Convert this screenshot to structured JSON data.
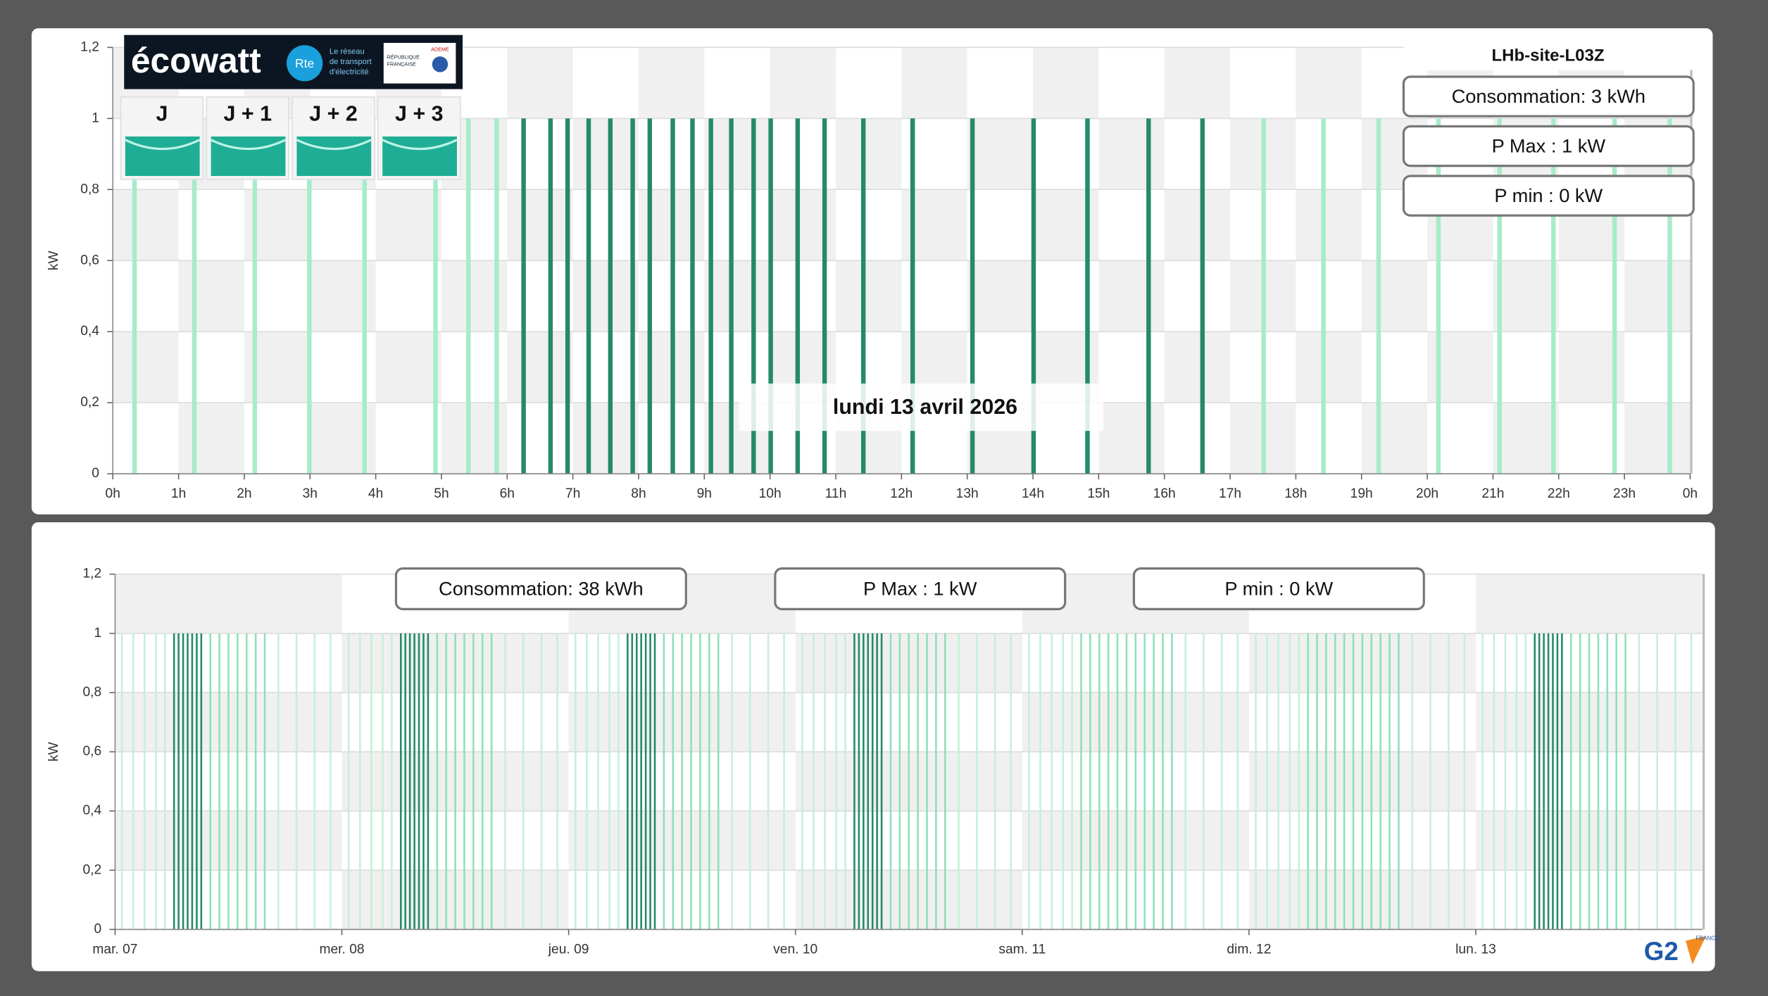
{
  "ecowatt": {
    "brand": "écowatt",
    "rte": "Rte",
    "rte_tagline": [
      "Le réseau",
      "de transport",
      "d'électricité"
    ],
    "republique": [
      "RÉPUBLIQUE",
      "FRANÇAISE"
    ],
    "ademe": "ADEME",
    "days": [
      "J",
      "J + 1",
      "J + 2",
      "J + 3"
    ]
  },
  "footer_logo": {
    "brand": "G2",
    "country": "FRANCE"
  },
  "chart_data": [
    {
      "type": "bar",
      "title": "LHb-site-L03Z",
      "annotation": "lundi 13 avril 2026",
      "info_boxes": [
        "Consommation: 3 kWh",
        "P Max :  1 kW",
        "P min : 0 kW"
      ],
      "y_label": "kW",
      "grid": true,
      "xlim": [
        0,
        24
      ],
      "xticks": [
        {
          "value": 0,
          "label": "0h"
        },
        {
          "value": 1,
          "label": "1h"
        },
        {
          "value": 2,
          "label": "2h"
        },
        {
          "value": 3,
          "label": "3h"
        },
        {
          "value": 4,
          "label": "4h"
        },
        {
          "value": 5,
          "label": "5h"
        },
        {
          "value": 6,
          "label": "6h"
        },
        {
          "value": 7,
          "label": "7h"
        },
        {
          "value": 8,
          "label": "8h"
        },
        {
          "value": 9,
          "label": "9h"
        },
        {
          "value": 10,
          "label": "10h"
        },
        {
          "value": 11,
          "label": "11h"
        },
        {
          "value": 12,
          "label": "12h"
        },
        {
          "value": 13,
          "label": "13h"
        },
        {
          "value": 14,
          "label": "14h"
        },
        {
          "value": 15,
          "label": "15h"
        },
        {
          "value": 16,
          "label": "16h"
        },
        {
          "value": 17,
          "label": "17h"
        },
        {
          "value": 18,
          "label": "18h"
        },
        {
          "value": 19,
          "label": "19h"
        },
        {
          "value": 20,
          "label": "20h"
        },
        {
          "value": 21,
          "label": "21h"
        },
        {
          "value": 22,
          "label": "22h"
        },
        {
          "value": 23,
          "label": "23h"
        },
        {
          "value": 24,
          "label": "0h"
        }
      ],
      "ylim": [
        0,
        1.2
      ],
      "yticks": [
        0,
        {
          "value": 0.2,
          "label": "0,2"
        },
        {
          "value": 0.4,
          "label": "0,4"
        },
        {
          "value": 0.6,
          "label": "0,6"
        },
        {
          "value": 0.8,
          "label": "0,8"
        },
        1,
        {
          "value": 1.2,
          "label": "1,2"
        }
      ],
      "series": [
        {
          "color": "#a8ebc9",
          "x": [
            0.33,
            1.24,
            2.16,
            2.99,
            3.83,
            4.91,
            5.41,
            5.84,
            17.51,
            18.42,
            19.26,
            20.17,
            21.1,
            21.92,
            22.85,
            23.69
          ],
          "values": [
            1,
            1,
            1,
            1,
            1,
            1,
            1,
            1,
            1,
            1,
            1,
            1,
            1,
            1,
            1,
            1
          ]
        },
        {
          "color": "#238a6a",
          "x": [
            6.25,
            6.66,
            6.92,
            7.24,
            7.57,
            7.91,
            8.17,
            8.52,
            8.82,
            9.1,
            9.41,
            9.75,
            10.01,
            10.42,
            10.83,
            11.42,
            12.17,
            13.08,
            14.01,
            14.83,
            15.76,
            16.58
          ],
          "values": [
            1,
            1,
            1,
            1,
            1,
            1,
            1,
            1,
            1,
            1,
            1,
            1,
            1,
            1,
            1,
            1,
            1,
            1,
            1,
            1,
            1,
            1
          ]
        }
      ]
    },
    {
      "type": "bar",
      "info_boxes": [
        "Consommation: 38 kWh",
        "P Max :  1 kW",
        "P min : 0 kW"
      ],
      "y_label": "kW",
      "grid": true,
      "xlim": [
        0,
        7
      ],
      "xticks": [
        {
          "value": 0,
          "label": "mar. 07"
        },
        {
          "value": 1,
          "label": "mer. 08"
        },
        {
          "value": 2,
          "label": "jeu. 09"
        },
        {
          "value": 3,
          "label": "ven. 10"
        },
        {
          "value": 4,
          "label": "sam. 11"
        },
        {
          "value": 5,
          "label": "dim. 12"
        },
        {
          "value": 6,
          "label": "lun. 13"
        }
      ],
      "ylim": [
        0,
        1.2
      ],
      "yticks": [
        0,
        {
          "value": 0.2,
          "label": "0,2"
        },
        {
          "value": 0.4,
          "label": "0,4"
        },
        {
          "value": 0.6,
          "label": "0,6"
        },
        {
          "value": 0.8,
          "label": "0,8"
        },
        1,
        {
          "value": 1.2,
          "label": "1,2"
        }
      ],
      "series": [
        {
          "color": "#c4f0da",
          "x": [
            0.03,
            0.08,
            0.13,
            0.18,
            0.22,
            0.72,
            0.8,
            0.88,
            0.95,
            1.03,
            1.08,
            1.13,
            1.18,
            1.22,
            1.72,
            1.8,
            1.88,
            1.95,
            2.03,
            2.08,
            2.13,
            2.18,
            2.22,
            2.72,
            2.8,
            2.88,
            2.95,
            3.03,
            3.08,
            3.13,
            3.18,
            3.22,
            3.72,
            3.8,
            3.88,
            3.95,
            4.03,
            4.08,
            4.13,
            4.18,
            4.22,
            4.72,
            4.8,
            4.88,
            4.95,
            5.03,
            5.08,
            5.13,
            5.18,
            5.22,
            5.72,
            5.8,
            5.88,
            5.95,
            6.03,
            6.08,
            6.13,
            6.18,
            6.22,
            6.72,
            6.8,
            6.88,
            6.95
          ],
          "values": [
            1,
            1,
            1,
            1,
            1,
            1,
            1,
            1,
            1,
            1,
            1,
            1,
            1,
            1,
            1,
            1,
            1,
            1,
            1,
            1,
            1,
            1,
            1,
            1,
            1,
            1,
            1,
            1,
            1,
            1,
            1,
            1,
            1,
            1,
            1,
            1,
            1,
            1,
            1,
            1,
            1,
            1,
            1,
            1,
            1,
            1,
            1,
            1,
            1,
            1,
            1,
            1,
            1,
            1,
            1,
            1,
            1,
            1,
            1,
            1,
            1,
            1,
            1
          ]
        },
        {
          "color": "#8fe0b8",
          "x": [
            0.42,
            0.46,
            0.5,
            0.54,
            0.58,
            0.62,
            0.66,
            1.42,
            1.46,
            1.5,
            1.54,
            1.58,
            1.62,
            1.66,
            2.42,
            2.46,
            2.5,
            2.54,
            2.58,
            2.62,
            2.66,
            3.42,
            3.46,
            3.5,
            3.54,
            3.58,
            3.62,
            3.66,
            4.26,
            4.3,
            4.34,
            4.38,
            4.42,
            4.46,
            4.5,
            4.54,
            4.58,
            4.62,
            4.66,
            5.26,
            5.3,
            5.34,
            5.38,
            5.42,
            5.46,
            5.5,
            5.54,
            5.58,
            5.62,
            5.66,
            6.42,
            6.46,
            6.5,
            6.54,
            6.58,
            6.62,
            6.66
          ],
          "values": [
            1,
            1,
            1,
            1,
            1,
            1,
            1,
            1,
            1,
            1,
            1,
            1,
            1,
            1,
            1,
            1,
            1,
            1,
            1,
            1,
            1,
            1,
            1,
            1,
            1,
            1,
            1,
            1,
            1,
            1,
            1,
            1,
            1,
            1,
            1,
            1,
            1,
            1,
            1,
            1,
            1,
            1,
            1,
            1,
            1,
            1,
            1,
            1,
            1,
            1,
            1,
            1,
            1,
            1,
            1,
            1,
            1
          ]
        },
        {
          "color": "#238a6a",
          "x": [
            0.26,
            0.28,
            0.3,
            0.32,
            0.34,
            0.36,
            0.38,
            1.26,
            1.28,
            1.3,
            1.32,
            1.34,
            1.36,
            1.38,
            2.26,
            2.28,
            2.3,
            2.32,
            2.34,
            2.36,
            2.38,
            3.26,
            3.28,
            3.3,
            3.32,
            3.34,
            3.36,
            3.38,
            6.26,
            6.28,
            6.3,
            6.32,
            6.34,
            6.36,
            6.38
          ],
          "values": [
            1,
            1,
            1,
            1,
            1,
            1,
            1,
            1,
            1,
            1,
            1,
            1,
            1,
            1,
            1,
            1,
            1,
            1,
            1,
            1,
            1,
            1,
            1,
            1,
            1,
            1,
            1,
            1,
            1,
            1,
            1,
            1,
            1,
            1,
            1
          ]
        }
      ]
    }
  ]
}
